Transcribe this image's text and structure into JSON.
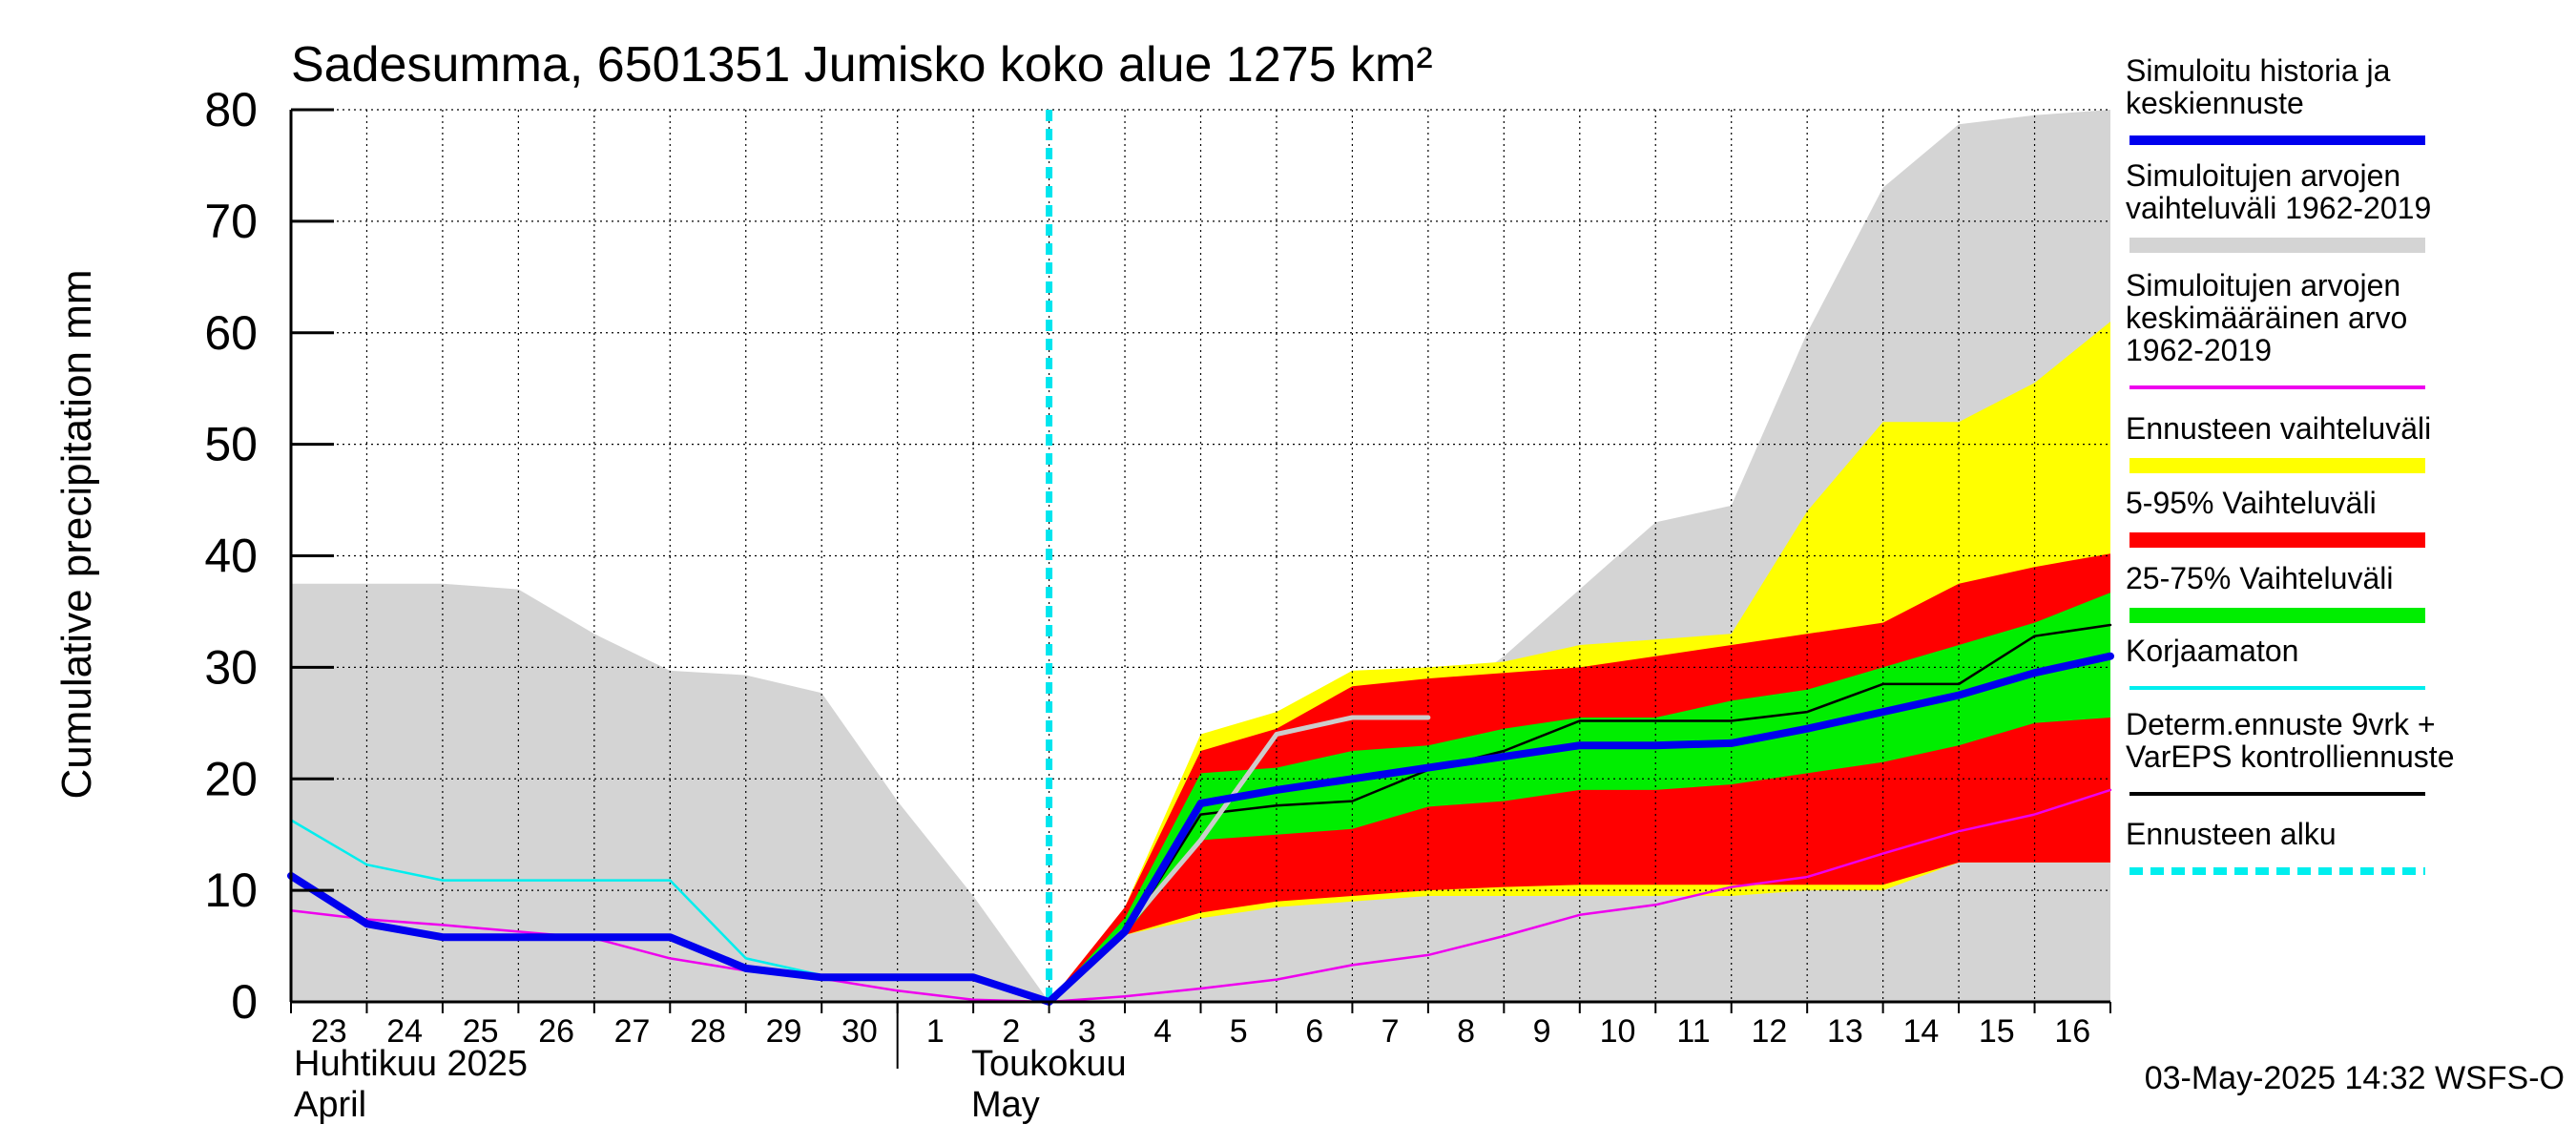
{
  "chart_data": {
    "type": "area",
    "title": "Sadesumma, 6501351 Jumisko koko alue 1275 km²",
    "ylabel": "Cumulative precipitation   mm",
    "ylim": [
      0,
      80
    ],
    "yticks": [
      0,
      10,
      20,
      30,
      40,
      50,
      60,
      70,
      80
    ],
    "grid": true,
    "legend_position": "right",
    "x_dates": [
      "2025-04-23",
      "2025-04-24",
      "2025-04-25",
      "2025-04-26",
      "2025-04-27",
      "2025-04-28",
      "2025-04-29",
      "2025-04-30",
      "2025-05-01",
      "2025-05-02",
      "2025-05-03",
      "2025-05-04",
      "2025-05-05",
      "2025-05-06",
      "2025-05-07",
      "2025-05-08",
      "2025-05-09",
      "2025-05-10",
      "2025-05-11",
      "2025-05-12",
      "2025-05-13",
      "2025-05-14",
      "2025-05-15",
      "2025-05-16",
      "2025-05-17"
    ],
    "xlim": [
      "2025-04-23",
      "2025-05-17"
    ],
    "day_ticks": [
      "23",
      "24",
      "25",
      "26",
      "27",
      "28",
      "29",
      "30",
      "1",
      "2",
      "3",
      "4",
      "5",
      "6",
      "7",
      "8",
      "9",
      "10",
      "11",
      "12",
      "13",
      "14",
      "15",
      "16"
    ],
    "month_labels": {
      "april_fi": "Huhtikuu  2025",
      "april_en": "April",
      "may_fi": "Toukokuu",
      "may_en": "May"
    },
    "forecast_start": "2025-05-03",
    "timestamp": "03-May-2025 14:32 WSFS-O",
    "series": [
      {
        "key": "hist_range",
        "name": "Simuloitujen arvojen vaihteluväli 1962-2019",
        "kind": "band",
        "color": "#d4d4d4",
        "upper": [
          37.5,
          37.5,
          37.5,
          37,
          33,
          29.7,
          29.3,
          27.7,
          18,
          9.5,
          0,
          6,
          12,
          19,
          26,
          26,
          31,
          37,
          43,
          44.5,
          60,
          73,
          78.7,
          79.5,
          80
        ],
        "lower": [
          0,
          0,
          0,
          0,
          0,
          0,
          0,
          0,
          0,
          0,
          0,
          0,
          0,
          0,
          0,
          0,
          0,
          0,
          0,
          0,
          0,
          0,
          0,
          0,
          0
        ]
      },
      {
        "key": "ens_range",
        "name": "Ennusteen vaihteluväli",
        "kind": "band",
        "color": "#ffff00",
        "x_start": "2025-05-03",
        "upper": [
          0,
          8.5,
          24,
          26,
          29.7,
          30,
          30.5,
          32,
          32.5,
          33,
          44,
          52,
          52,
          55.5,
          61
        ],
        "lower": [
          0,
          6,
          7.5,
          8.5,
          9,
          9.5,
          9.5,
          9.5,
          9.5,
          9.5,
          10,
          10,
          12.5,
          12.5,
          12.5
        ]
      },
      {
        "key": "p5_95",
        "name": "5-95% Vaihteluväli",
        "kind": "band",
        "color": "#ff0000",
        "x_start": "2025-05-03",
        "upper": [
          0,
          8.5,
          22.5,
          24.5,
          28.3,
          29,
          29.5,
          30,
          31,
          32,
          33,
          34,
          37.5,
          39,
          40.2
        ],
        "lower": [
          0,
          6,
          8,
          9,
          9.5,
          10,
          10.3,
          10.5,
          10.5,
          10.5,
          10.5,
          10.5,
          12.5,
          12.5,
          12.5
        ]
      },
      {
        "key": "p25_75",
        "name": "25-75% Vaihteluväli",
        "kind": "band",
        "color": "#00ee00",
        "x_start": "2025-05-03",
        "upper": [
          0,
          7.5,
          20.5,
          21,
          22.5,
          23,
          24.5,
          25.5,
          25.5,
          27,
          28,
          30,
          32,
          34,
          36.7
        ],
        "lower": [
          0,
          6,
          14.5,
          15,
          15.5,
          17.5,
          18,
          19,
          19,
          19.5,
          20.5,
          21.5,
          23,
          25,
          25.5
        ]
      },
      {
        "key": "mean_hist",
        "name": "Simuloitujen arvojen keskimääräinen arvo    1962-2019",
        "kind": "line",
        "color": "#ee00ee",
        "width": 2.5,
        "values": [
          8.2,
          7.4,
          6.9,
          6.3,
          5.7,
          3.9,
          2.8,
          2.1,
          1,
          0.2,
          0,
          0.5,
          1.2,
          2,
          3.3,
          4.2,
          5.9,
          7.8,
          8.7,
          10.3,
          11.2,
          13.3,
          15.3,
          16.8,
          19
        ]
      },
      {
        "key": "uncorrected",
        "name": "Korjaamaton",
        "kind": "line",
        "color": "#00eeee",
        "width": 2.5,
        "values": [
          16.3,
          12.3,
          10.9,
          10.9,
          10.9,
          10.9,
          3.9,
          2.4,
          2.4,
          2.4,
          0
        ]
      },
      {
        "key": "control",
        "name": "Determ.ennuste 9vrk + VarEPS kontrolliennuste",
        "kind": "line",
        "color": "#000000",
        "width": 2.5,
        "x_start": "2025-05-03",
        "values": [
          0,
          6,
          16.8,
          17.6,
          18,
          20.8,
          22.5,
          25.2,
          25.2,
          25.2,
          26,
          28.5,
          28.5,
          32.8,
          33.8
        ]
      },
      {
        "key": "det_gray",
        "name": "",
        "kind": "line",
        "color": "#cccccc",
        "width": 5,
        "x_start": "2025-05-03",
        "values": [
          0,
          6.5,
          14.5,
          24,
          25.5,
          25.5
        ]
      },
      {
        "key": "sim_mean",
        "name": "Simuloitu historia ja keskiennuste",
        "kind": "line",
        "color": "#0000ee",
        "width": 8,
        "values": [
          11.3,
          7,
          5.8,
          5.8,
          5.8,
          5.8,
          3,
          2.2,
          2.2,
          2.2,
          0,
          6.3,
          17.8,
          19,
          20,
          21,
          22,
          23,
          23,
          23.2,
          24.5,
          26,
          27.5,
          29.5,
          31
        ]
      }
    ],
    "legend": [
      {
        "label": "Simuloitu historia ja\nkeskiennuste",
        "color": "#0000ee",
        "style": "line-thick"
      },
      {
        "label": "Simuloitujen arvojen\nvaihteluväli 1962-2019",
        "color": "#d4d4d4",
        "style": "band"
      },
      {
        "label": "Simuloitujen arvojen\nkeskimääräinen arvo\n   1962-2019",
        "color": "#ee00ee",
        "style": "line"
      },
      {
        "label": "Ennusteen vaihteluväli",
        "color": "#ffff00",
        "style": "band"
      },
      {
        "label": "5-95% Vaihteluväli",
        "color": "#ff0000",
        "style": "band"
      },
      {
        "label": "25-75% Vaihteluväli",
        "color": "#00ee00",
        "style": "band"
      },
      {
        "label": "Korjaamaton",
        "color": "#00eeee",
        "style": "line"
      },
      {
        "label": "Determ.ennuste 9vrk +\nVarEPS kontrolliennuste",
        "color": "#000000",
        "style": "line"
      },
      {
        "label": "Ennusteen alku",
        "color": "#00eeee",
        "style": "dashed"
      }
    ]
  }
}
